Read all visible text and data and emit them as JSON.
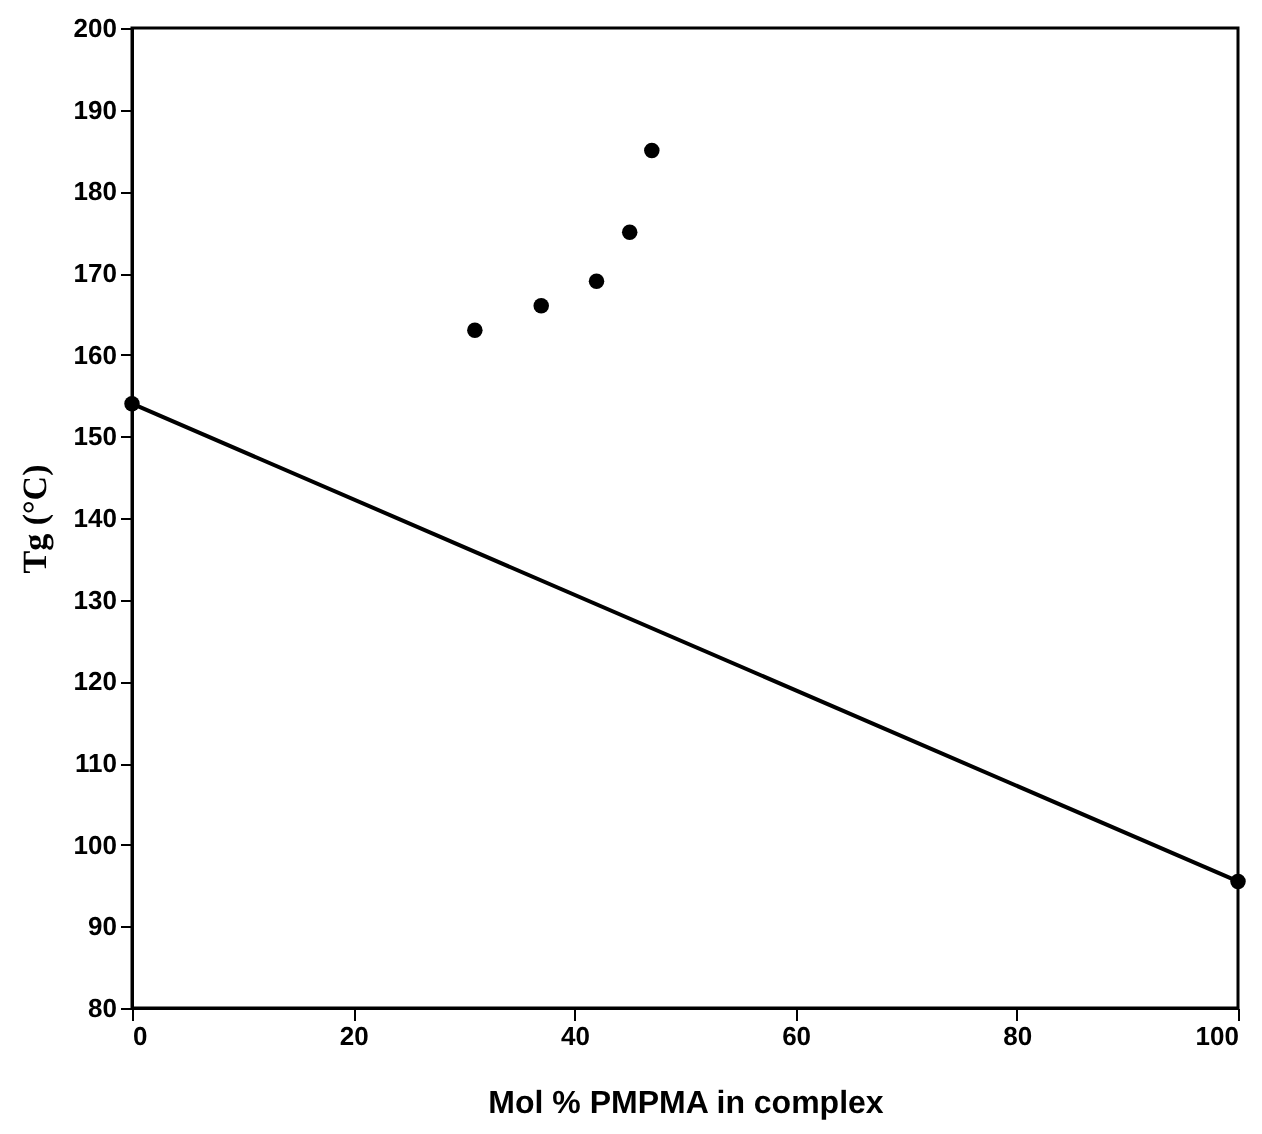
{
  "chart_data": {
    "type": "scatter",
    "xlabel": "Mol % PMPMA in complex",
    "ylabel": "Tg (°C)",
    "xlim": [
      0,
      100
    ],
    "ylim": [
      80,
      200
    ],
    "xticks": [
      0,
      20,
      40,
      60,
      80,
      100
    ],
    "yticks": [
      80,
      90,
      100,
      110,
      120,
      130,
      140,
      150,
      160,
      170,
      180,
      190,
      200
    ],
    "grid": false,
    "marker": "circle",
    "series": [
      {
        "color": "#000000",
        "x": [
          31,
          37,
          42,
          45,
          47
        ],
        "values": [
          163,
          166,
          169,
          175,
          185
        ]
      },
      {
        "type": "line",
        "color": "#000000",
        "line_style": "solid",
        "x": [
          0,
          100
        ],
        "values": [
          154,
          95.5
        ]
      }
    ]
  }
}
